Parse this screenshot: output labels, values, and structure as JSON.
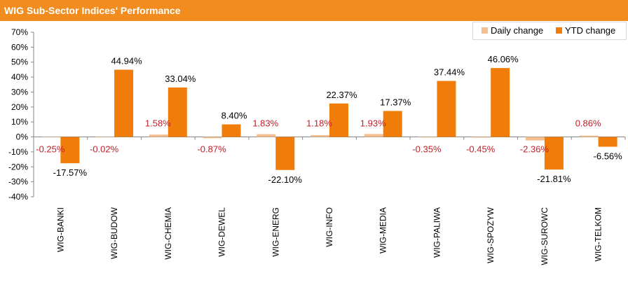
{
  "title": "WIG Sub-Sector Indices' Performance",
  "colors": {
    "header": "#F28C1E",
    "daily": "#F4BE8E",
    "ytd": "#F07D0A",
    "daily_label": "#C0202A",
    "ytd_label": "#000000"
  },
  "chart_data": {
    "type": "bar",
    "categories": [
      "WIG-BANKI",
      "WIG-BUDOW",
      "WIG-CHEMIA",
      "WIG-DEWEL",
      "WIG-ENERG",
      "WIG-INFO",
      "WIG-MEDIA",
      "WIG-PALIWA",
      "WIG-SPOZYW",
      "WIG-SUROWC",
      "WIG-TELKOM"
    ],
    "series": [
      {
        "name": "Daily change",
        "values": [
          -0.25,
          -0.02,
          1.58,
          -0.87,
          1.83,
          1.18,
          1.93,
          -0.35,
          -0.45,
          -2.36,
          0.86
        ],
        "labels": [
          "-0.25%",
          "-0.02%",
          "1.58%",
          "-0.87%",
          "1.83%",
          "1.18%",
          "1.93%",
          "-0.35%",
          "-0.45%",
          "-2.36%",
          "0.86%"
        ]
      },
      {
        "name": "YTD change",
        "values": [
          -17.57,
          44.94,
          33.04,
          8.4,
          -22.1,
          22.37,
          17.37,
          37.44,
          46.06,
          -21.81,
          -6.56
        ],
        "labels": [
          "-17.57%",
          "44.94%",
          "33.04%",
          "8.40%",
          "-22.10%",
          "22.37%",
          "17.37%",
          "37.44%",
          "46.06%",
          "-21.81%",
          "-6.56%"
        ]
      }
    ],
    "ylim": [
      -40,
      70
    ],
    "yticks": [
      "70%",
      "60%",
      "50%",
      "40%",
      "30%",
      "20%",
      "10%",
      "0%",
      "-10%",
      "-20%",
      "-30%",
      "-40%"
    ],
    "grid": false,
    "legend": "top-right"
  }
}
